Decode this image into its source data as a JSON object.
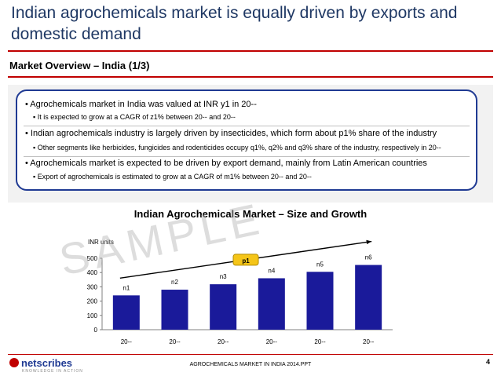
{
  "slide": {
    "title": "Indian agrochemicals market is equally driven by exports and domestic demand",
    "subtitle": "Market Overview – India (1/3)",
    "watermark": "SAMPLE",
    "footer": "AGROCHEMICALS MARKET IN INDIA 2014.PPT",
    "page_number": "4",
    "logo": "netscribes",
    "logo_tagline": "KNOWLEDGE IN ACTION"
  },
  "bullets": [
    {
      "text": "• Agrochemicals market in India was valued at INR y1 in 20--",
      "sub": "▪  It is expected to grow at a CAGR of z1% between 20-- and 20--"
    },
    {
      "text": "• Indian agrochemicals industry is largely driven by insecticides, which form about p1% share of the industry",
      "sub": "▪  Other segments like herbicides, fungicides and rodenticides occupy q1%, q2% and q3% share of the industry, respectively in 20--"
    },
    {
      "text": "• Agrochemicals market is expected to be driven by export demand, mainly from Latin American countries",
      "sub": "▪  Export of agrochemicals is estimated to grow at a CAGR of m1% between 20-- and 20--"
    }
  ],
  "chart_data": {
    "type": "bar",
    "title": "Indian Agrochemicals Market – Size and Growth",
    "ylabel": "INR units",
    "ylim": [
      0,
      500
    ],
    "yticks": [
      0,
      100,
      200,
      300,
      400,
      500
    ],
    "categories": [
      "20--",
      "20--",
      "20--",
      "20--",
      "20--",
      "20--"
    ],
    "values": [
      240,
      280,
      318,
      360,
      405,
      453
    ],
    "data_labels": [
      "n1",
      "n2",
      "n3",
      "n4",
      "n5",
      "n6"
    ],
    "growth_label": "p1",
    "bar_color": "#1a1a9a",
    "grid": false,
    "legend": "none"
  }
}
